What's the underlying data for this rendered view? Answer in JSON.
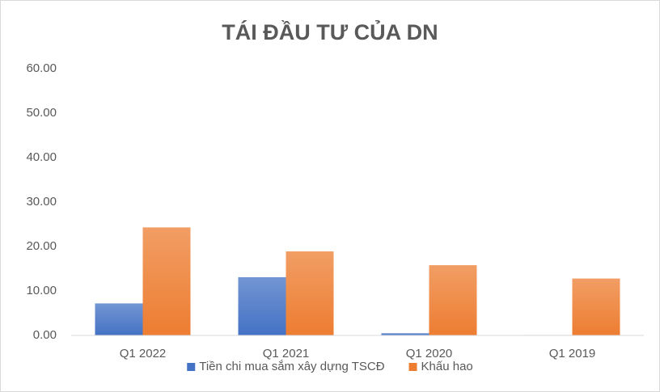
{
  "chart_data": {
    "type": "bar",
    "title": "TÁI ĐẦU TƯ CỦA DN",
    "categories": [
      "Q1 2022",
      "Q1 2021",
      "Q1 2020",
      "Q1 2019"
    ],
    "series": [
      {
        "name": "Tiền chi mua sắm xây dựng TSCĐ",
        "color": "#4472c4",
        "values": [
          7.2,
          13.1,
          0.5,
          0.1
        ]
      },
      {
        "name": "Khấu hao",
        "color": "#ed7d31",
        "values": [
          24.3,
          18.9,
          15.8,
          12.8
        ]
      }
    ],
    "ylim": [
      0,
      60
    ],
    "yticks": [
      {
        "value": 0,
        "label": "0.00"
      },
      {
        "value": 10,
        "label": "10.00"
      },
      {
        "value": 20,
        "label": "20.00"
      },
      {
        "value": 30,
        "label": "30.00"
      },
      {
        "value": 40,
        "label": "40.00"
      },
      {
        "value": 50,
        "label": "50.00"
      },
      {
        "value": 60,
        "label": "60.00"
      }
    ],
    "grid": false,
    "legend": "bottom"
  }
}
